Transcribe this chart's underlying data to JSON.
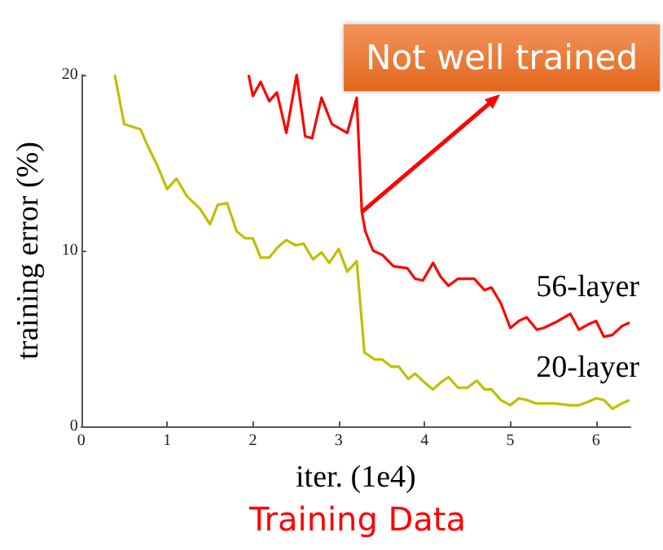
{
  "chart_data": {
    "type": "line",
    "title": "Training Data",
    "xlabel": "iter. (1e4)",
    "ylabel": "training error (%)",
    "xlim": [
      0,
      6.4
    ],
    "ylim": [
      0,
      20
    ],
    "xticks": [
      0,
      1,
      2,
      3,
      4,
      5,
      6
    ],
    "yticks": [
      0,
      10,
      20
    ],
    "grid": false,
    "legend": false,
    "marker": "none",
    "line_style": "solid",
    "annotations": [
      {
        "text": "Not well trained",
        "x": 3.27,
        "y": 12.2
      }
    ],
    "series": [
      {
        "name": "56-layer",
        "color": "#ff0000",
        "x": [
          1.95,
          2.0,
          2.09,
          2.19,
          2.28,
          2.39,
          2.51,
          2.61,
          2.69,
          2.8,
          2.92,
          3.1,
          3.21,
          3.27,
          3.31,
          3.4,
          3.51,
          3.64,
          3.8,
          3.89,
          3.98,
          4.1,
          4.19,
          4.28,
          4.39,
          4.58,
          4.7,
          4.78,
          4.89,
          5.0,
          5.1,
          5.19,
          5.31,
          5.39,
          5.52,
          5.7,
          5.8,
          5.91,
          6.0,
          6.09,
          6.19,
          6.3,
          6.39
        ],
        "values": [
          20,
          18.8,
          19.6,
          18.5,
          19,
          16.7,
          20,
          16.5,
          16.4,
          18.7,
          17.2,
          16.7,
          18.7,
          12.2,
          11.1,
          10,
          9.75,
          9.1,
          9,
          8.4,
          8.3,
          9.3,
          8.5,
          8,
          8.4,
          8.4,
          7.75,
          7.9,
          7,
          5.6,
          6,
          6.2,
          5.5,
          5.6,
          5.9,
          6.4,
          5.5,
          5.8,
          6,
          5.1,
          5.2,
          5.7,
          5.9
        ]
      },
      {
        "name": "20-layer",
        "color": "#c0c000",
        "x": [
          0.39,
          0.5,
          0.69,
          0.78,
          0.89,
          1.0,
          1.11,
          1.23,
          1.38,
          1.5,
          1.59,
          1.7,
          1.81,
          1.91,
          2.0,
          2.09,
          2.19,
          2.29,
          2.39,
          2.5,
          2.59,
          2.7,
          2.8,
          2.89,
          3.0,
          3.1,
          3.21,
          3.3,
          3.42,
          3.51,
          3.61,
          3.7,
          3.81,
          3.89,
          4.0,
          4.1,
          4.19,
          4.28,
          4.39,
          4.5,
          4.61,
          4.7,
          4.78,
          4.89,
          5.0,
          5.1,
          5.19,
          5.3,
          5.52,
          5.7,
          5.8,
          5.91,
          6.0,
          6.09,
          6.19,
          6.3,
          6.39
        ],
        "values": [
          20,
          17.2,
          16.9,
          15.9,
          14.8,
          13.5,
          14.1,
          13.1,
          12.4,
          11.5,
          12.6,
          12.7,
          11.1,
          10.7,
          10.7,
          9.6,
          9.6,
          10.2,
          10.6,
          10.3,
          10.4,
          9.5,
          9.9,
          9.3,
          10.1,
          8.8,
          9.4,
          4.2,
          3.8,
          3.8,
          3.4,
          3.4,
          2.7,
          3,
          2.5,
          2.1,
          2.5,
          2.8,
          2.2,
          2.2,
          2.6,
          2.1,
          2.1,
          1.5,
          1.2,
          1.6,
          1.5,
          1.3,
          1.3,
          1.2,
          1.2,
          1.4,
          1.6,
          1.5,
          1,
          1.3,
          1.5
        ]
      }
    ]
  }
}
